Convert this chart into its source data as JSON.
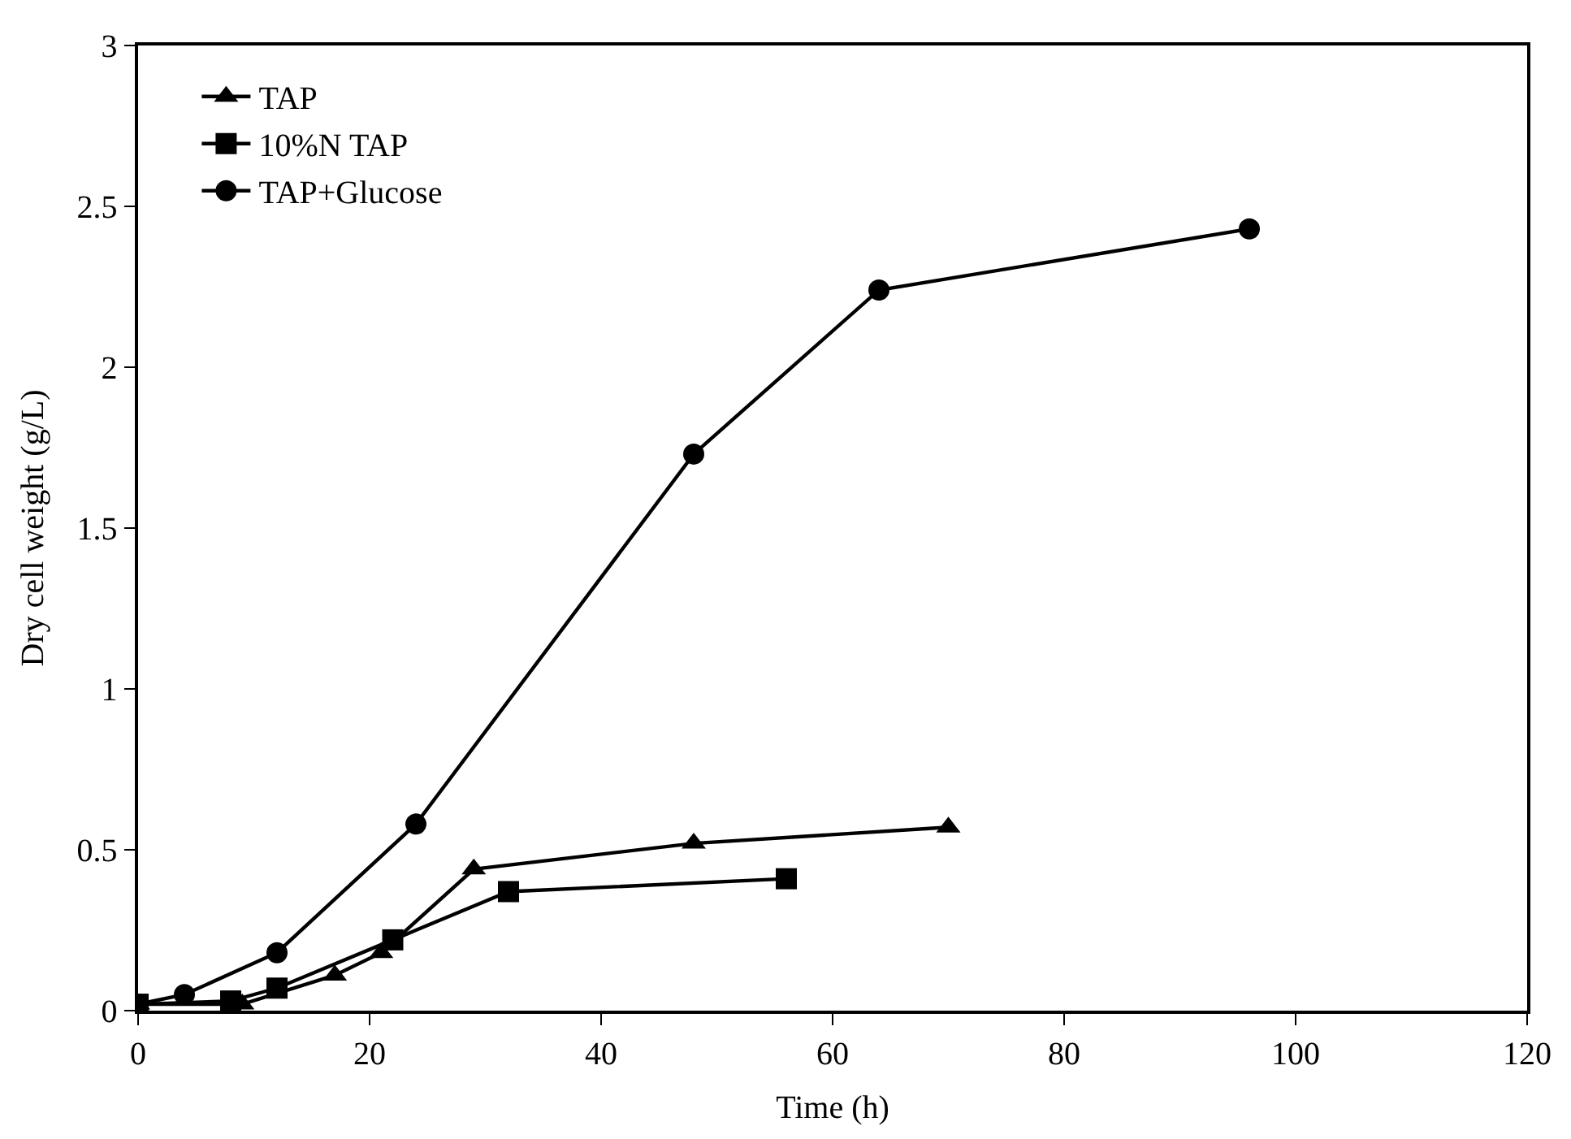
{
  "chart_data": {
    "type": "line",
    "xlabel": "Time (h)",
    "ylabel": "Dry cell weight (g/L)",
    "xlim": [
      0,
      120
    ],
    "xticks": [
      0,
      20,
      40,
      60,
      80,
      100,
      120
    ],
    "ylim": [
      0,
      3
    ],
    "yticks": [
      0,
      0.5,
      1,
      1.5,
      2,
      2.5,
      3
    ],
    "legend": "top left",
    "line_style": "solid",
    "series": [
      {
        "name": "TAP",
        "color": "#000000",
        "marker": "triangle",
        "x": [
          0,
          9,
          17,
          21,
          29,
          48,
          70
        ],
        "values": [
          0.02,
          0.02,
          0.11,
          0.18,
          0.44,
          0.52,
          0.57
        ]
      },
      {
        "name": "10%N TAP",
        "color": "#000000",
        "marker": "square",
        "x": [
          0,
          8,
          12,
          22,
          32,
          56
        ],
        "values": [
          0.02,
          0.03,
          0.07,
          0.22,
          0.37,
          0.41
        ]
      },
      {
        "name": "TAP+Glucose",
        "color": "#000000",
        "marker": "circle",
        "x": [
          0,
          4,
          12,
          24,
          48,
          64,
          96
        ],
        "values": [
          0.02,
          0.05,
          0.18,
          0.58,
          1.73,
          2.24,
          2.43
        ]
      }
    ]
  }
}
